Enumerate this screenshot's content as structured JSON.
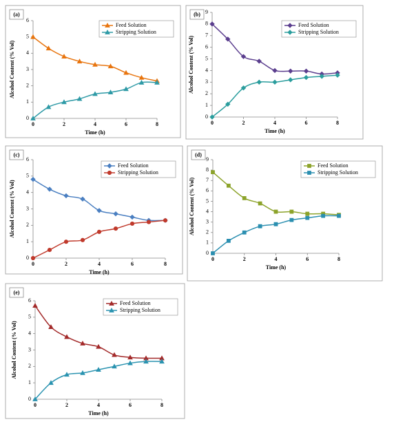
{
  "chart_data": [
    {
      "type": "line",
      "label": "(a)",
      "x_label": "Time (h)",
      "y_label": "Alcohol Content (% Vol)",
      "x": [
        0,
        1,
        2,
        3,
        4,
        5,
        6,
        7,
        8
      ],
      "xlim": [
        0,
        8
      ],
      "xticks": [
        0,
        2,
        4,
        6,
        8
      ],
      "ylim": [
        0,
        6
      ],
      "yticks": [
        0,
        1,
        2,
        3,
        4,
        5,
        6
      ],
      "legend": "upper right",
      "series": [
        {
          "name": "Feed Solution",
          "color": "#e8750f",
          "marker": "triangle",
          "values": [
            5.0,
            4.3,
            3.8,
            3.5,
            3.3,
            3.2,
            2.8,
            2.5,
            2.3
          ]
        },
        {
          "name": "Stripping Solution",
          "color": "#2e9aa6",
          "marker": "triangle",
          "values": [
            0,
            0.7,
            1.0,
            1.2,
            1.5,
            1.6,
            1.8,
            2.2,
            2.2
          ]
        }
      ]
    },
    {
      "type": "line",
      "label": "(b)",
      "x_label": "Time (h)",
      "y_label": "Alcohol Content (% Vol)",
      "x": [
        0,
        1,
        2,
        3,
        4,
        5,
        6,
        7,
        8
      ],
      "xlim": [
        0,
        8
      ],
      "xticks": [
        0,
        2,
        4,
        6,
        8
      ],
      "ylim": [
        0,
        9
      ],
      "yticks": [
        0,
        1,
        2,
        3,
        4,
        5,
        6,
        7,
        8,
        9
      ],
      "legend": "upper right",
      "series": [
        {
          "name": "Feed Solution",
          "color": "#5b3e8e",
          "marker": "diamond",
          "values": [
            8.0,
            6.7,
            5.2,
            4.8,
            4.0,
            3.95,
            3.95,
            3.7,
            3.8
          ]
        },
        {
          "name": "Stripping Solution",
          "color": "#2a9d9d",
          "marker": "diamond",
          "values": [
            0,
            1.1,
            2.5,
            3.0,
            3.0,
            3.2,
            3.4,
            3.5,
            3.6
          ]
        }
      ]
    },
    {
      "type": "line",
      "label": "(c)",
      "x_label": "Time (h)",
      "y_label": "Alcohol Content (% Vol)",
      "x": [
        0,
        1,
        2,
        3,
        4,
        5,
        6,
        7,
        8
      ],
      "xlim": [
        0,
        8
      ],
      "xticks": [
        0,
        2,
        4,
        6,
        8
      ],
      "ylim": [
        0,
        6
      ],
      "yticks": [
        0,
        1,
        2,
        3,
        4,
        5,
        6
      ],
      "legend": "upper right",
      "series": [
        {
          "name": "Feed Solution",
          "color": "#4a7fc1",
          "marker": "diamond",
          "values": [
            4.8,
            4.2,
            3.8,
            3.6,
            2.9,
            2.7,
            2.5,
            2.3,
            2.3
          ]
        },
        {
          "name": "Stripping Solution",
          "color": "#c0392b",
          "marker": "circle",
          "values": [
            0,
            0.5,
            1.0,
            1.1,
            1.6,
            1.8,
            2.1,
            2.2,
            2.3
          ]
        }
      ]
    },
    {
      "type": "line",
      "label": "(d)",
      "x_label": "Time (h)",
      "y_label": "Alcohol Content (% Vol)",
      "x": [
        0,
        1,
        2,
        3,
        4,
        5,
        6,
        7,
        8
      ],
      "xlim": [
        0,
        8
      ],
      "xticks": [
        0,
        2,
        4,
        6,
        8
      ],
      "ylim": [
        0,
        9
      ],
      "yticks": [
        0,
        1,
        2,
        3,
        4,
        5,
        6,
        7,
        8,
        9
      ],
      "legend": "upper right",
      "series": [
        {
          "name": "Feed Solution",
          "color": "#8ca32a",
          "marker": "square",
          "values": [
            7.8,
            6.5,
            5.3,
            4.8,
            4.0,
            4.0,
            3.8,
            3.8,
            3.7
          ]
        },
        {
          "name": "Stripping Solution",
          "color": "#2b8fb0",
          "marker": "square",
          "values": [
            0,
            1.2,
            2.0,
            2.6,
            2.8,
            3.2,
            3.4,
            3.6,
            3.6
          ]
        }
      ]
    },
    {
      "type": "line",
      "label": "(e)",
      "x_label": "Time (h)",
      "y_label": "Alcohol Content (% Vol)",
      "x": [
        0,
        1,
        2,
        3,
        4,
        5,
        6,
        7,
        8
      ],
      "xlim": [
        0,
        8
      ],
      "xticks": [
        0,
        2,
        4,
        6,
        8
      ],
      "ylim": [
        0,
        6
      ],
      "yticks": [
        0,
        1,
        2,
        3,
        4,
        5,
        6
      ],
      "legend": "upper right",
      "series": [
        {
          "name": "Feed Solution",
          "color": "#a32a2a",
          "marker": "triangle",
          "values": [
            5.7,
            4.4,
            3.8,
            3.4,
            3.2,
            2.7,
            2.55,
            2.5,
            2.5
          ]
        },
        {
          "name": "Stripping Solution",
          "color": "#2a93b0",
          "marker": "triangle",
          "values": [
            0,
            1.0,
            1.5,
            1.6,
            1.8,
            2.0,
            2.2,
            2.3,
            2.3
          ]
        }
      ]
    }
  ]
}
